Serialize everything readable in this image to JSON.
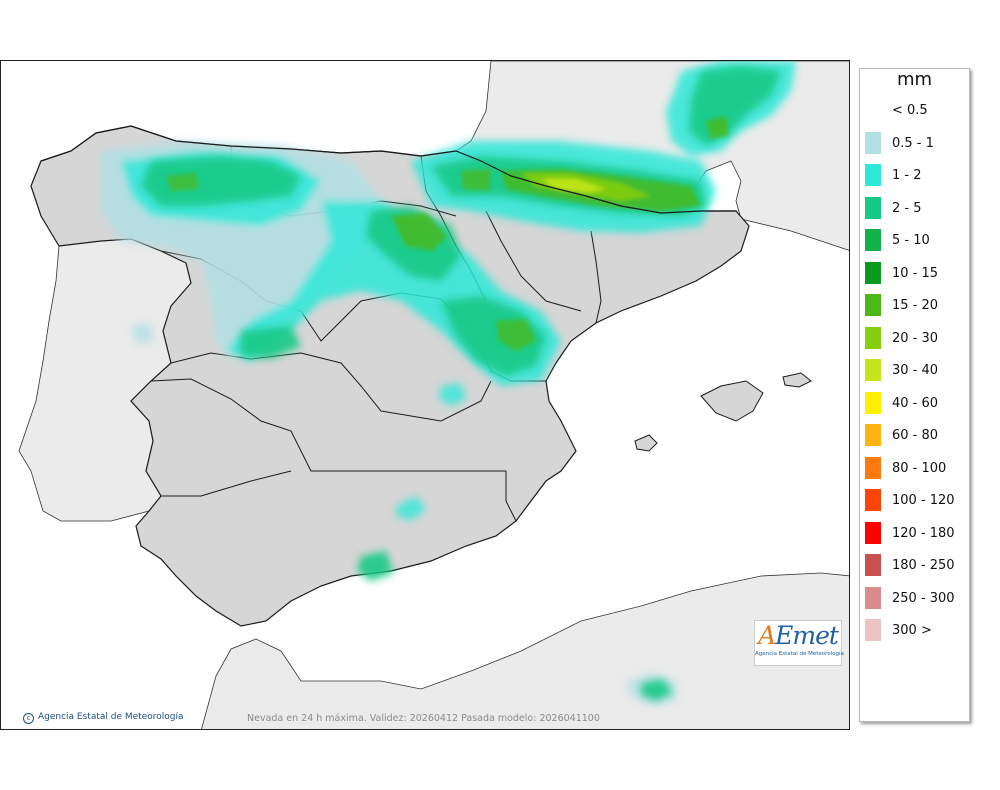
{
  "map": {
    "copyright": "Agencia Estatal de Meteorología",
    "caption": "Nevada en 24 h máxima. Validez: 20260412 Pasada modelo: 2026041100",
    "logo": {
      "word_a": "A",
      "word_rest": "Emet",
      "subtitle": "Agencia Estatal de Meteorología"
    },
    "colors": {
      "sea": "#ffffff",
      "foreign_land": "#ebebeb",
      "spain_land": "#d6d6d6",
      "border": "#1a1a1a"
    }
  },
  "legend": {
    "unit": "mm",
    "classes": [
      {
        "label": "< 0.5",
        "color": "#ffffff"
      },
      {
        "label": "0.5 - 1",
        "color": "#b2dfe3"
      },
      {
        "label": "1 - 2",
        "color": "#2ee8d8"
      },
      {
        "label": "2 - 5",
        "color": "#14c986"
      },
      {
        "label": "5 - 10",
        "color": "#12b24a"
      },
      {
        "label": "10 - 15",
        "color": "#0a9a1e"
      },
      {
        "label": "15 - 20",
        "color": "#4bb81a"
      },
      {
        "label": "20 - 30",
        "color": "#86cf10"
      },
      {
        "label": "30 - 40",
        "color": "#c4e61a"
      },
      {
        "label": "40 - 60",
        "color": "#fff000"
      },
      {
        "label": "60 - 80",
        "color": "#ffb412"
      },
      {
        "label": "80 - 100",
        "color": "#ff7a0e"
      },
      {
        "label": "100 - 120",
        "color": "#ff440a"
      },
      {
        "label": "120 - 180",
        "color": "#ff0000"
      },
      {
        "label": "180 - 250",
        "color": "#c95050"
      },
      {
        "label": "250 - 300",
        "color": "#da8c8c"
      },
      {
        "label": "300 >",
        "color": "#ecc4c4"
      }
    ]
  }
}
